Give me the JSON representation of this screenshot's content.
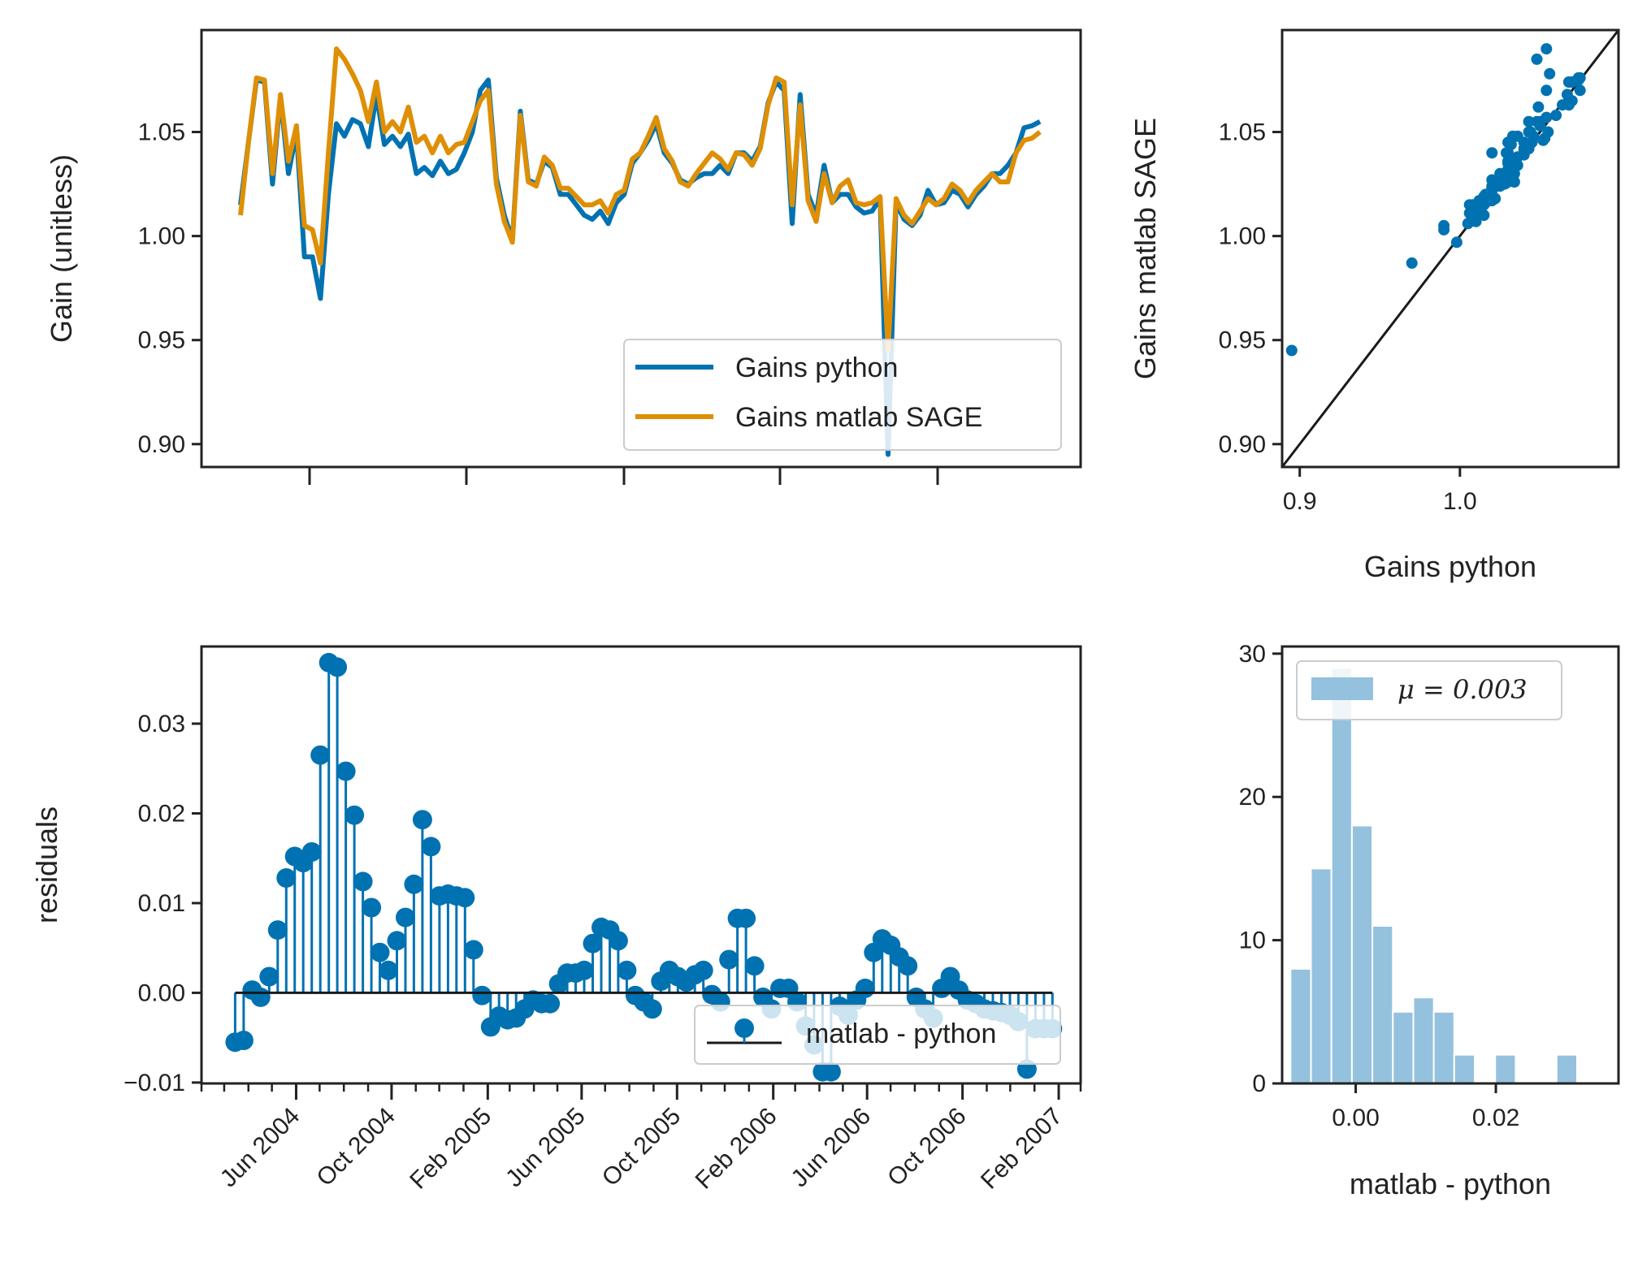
{
  "colors": {
    "python": "#0072b2",
    "matlab": "#de8f05",
    "identity": "#1a1a1a",
    "baseline": "#1a1a1a",
    "hist": "#94c1de",
    "axes": "#222222"
  },
  "chart_data": [
    {
      "id": "gains_timeseries",
      "type": "line",
      "title": "",
      "xlabel": "",
      "ylabel": "Gain (unitless)",
      "ylim": [
        0.889,
        1.099
      ],
      "yticks": [
        0.9,
        0.95,
        1.0,
        1.05
      ],
      "ytick_labels": [
        "0.90",
        "0.95",
        "1.00",
        "1.05"
      ],
      "x_index_range": [
        0,
        100
      ],
      "legend_position": "lower-right",
      "series": [
        {
          "name": "Gains python",
          "color": "#0072b2",
          "values": [
            1.015,
            1.045,
            1.075,
            1.074,
            1.025,
            1.067,
            1.03,
            1.05,
            0.99,
            0.99,
            0.97,
            1.02,
            1.054,
            1.048,
            1.056,
            1.054,
            1.043,
            1.068,
            1.044,
            1.048,
            1.043,
            1.049,
            1.03,
            1.033,
            1.029,
            1.036,
            1.03,
            1.032,
            1.04,
            1.05,
            1.07,
            1.075,
            1.028,
            1.01,
            0.998,
            1.06,
            1.027,
            1.025,
            1.036,
            1.033,
            1.02,
            1.02,
            1.015,
            1.01,
            1.008,
            1.012,
            1.006,
            1.016,
            1.02,
            1.035,
            1.04,
            1.046,
            1.054,
            1.04,
            1.035,
            1.027,
            1.025,
            1.028,
            1.03,
            1.03,
            1.034,
            1.03,
            1.04,
            1.04,
            1.036,
            1.043,
            1.064,
            1.074,
            1.07,
            1.006,
            1.068,
            1.02,
            1.01,
            1.034,
            1.016,
            1.02,
            1.02,
            1.014,
            1.011,
            1.012,
            1.018,
            0.895,
            1.016,
            1.008,
            1.005,
            1.01,
            1.022,
            1.015,
            1.016,
            1.022,
            1.02,
            1.014,
            1.02,
            1.024,
            1.03,
            1.03,
            1.034,
            1.04,
            1.052,
            1.053,
            1.055
          ],
          "ylabel_shown": ""
        },
        {
          "name": "Gains matlab SAGE",
          "color": "#de8f05",
          "values": [
            1.01,
            1.045,
            1.076,
            1.075,
            1.03,
            1.068,
            1.036,
            1.053,
            1.005,
            1.003,
            0.987,
            1.04,
            1.09,
            1.085,
            1.078,
            1.07,
            1.055,
            1.074,
            1.05,
            1.055,
            1.05,
            1.062,
            1.045,
            1.048,
            1.04,
            1.048,
            1.04,
            1.044,
            1.045,
            1.055,
            1.065,
            1.07,
            1.025,
            1.007,
            0.997,
            1.058,
            1.026,
            1.024,
            1.038,
            1.034,
            1.023,
            1.023,
            1.019,
            1.015,
            1.015,
            1.017,
            1.011,
            1.02,
            1.022,
            1.037,
            1.04,
            1.048,
            1.057,
            1.042,
            1.036,
            1.026,
            1.024,
            1.03,
            1.035,
            1.04,
            1.037,
            1.032,
            1.04,
            1.039,
            1.034,
            1.042,
            1.063,
            1.076,
            1.074,
            1.015,
            1.063,
            1.017,
            1.007,
            1.03,
            1.016,
            1.024,
            1.027,
            1.016,
            1.015,
            1.016,
            1.019,
            0.945,
            1.018,
            1.01,
            1.006,
            1.012,
            1.018,
            1.015,
            1.018,
            1.025,
            1.022,
            1.016,
            1.022,
            1.026,
            1.03,
            1.026,
            1.026,
            1.04,
            1.046,
            1.047,
            1.05
          ]
        }
      ]
    },
    {
      "id": "gains_scatter",
      "type": "scatter",
      "title": "",
      "xlabel": "Gains python",
      "ylabel": "Gains matlab SAGE",
      "xlim": [
        0.889,
        1.099
      ],
      "ylim": [
        0.889,
        1.099
      ],
      "xticks": [
        0.9,
        1.0
      ],
      "xtick_labels": [
        "0.9",
        "1.0"
      ],
      "yticks": [
        0.9,
        0.95,
        1.0,
        1.05
      ],
      "ytick_labels": [
        "0.90",
        "0.95",
        "1.00",
        "1.05"
      ],
      "identity_line": true,
      "note": "points are (Gains python, Gains matlab SAGE) pairs from the time series"
    },
    {
      "id": "residuals_stem",
      "type": "stem",
      "title": "",
      "xlabel": "",
      "ylabel": "residuals",
      "ylim": [
        -0.0101,
        0.0386
      ],
      "yticks": [
        -0.01,
        0.0,
        0.01,
        0.02,
        0.03
      ],
      "ytick_labels": [
        "−0.01",
        "0.00",
        "0.01",
        "0.02",
        "0.03"
      ],
      "x_start": "2004-03-15",
      "x_end": "2007-01-24",
      "x_range": [
        "2004-02-01",
        "2007-03-01"
      ],
      "xtick_dates": [
        "2004-06-01",
        "2004-10-01",
        "2005-02-01",
        "2005-06-01",
        "2005-10-01",
        "2006-02-01",
        "2006-06-01",
        "2006-10-01",
        "2007-02-01"
      ],
      "xtick_labels": [
        "Jun 2004",
        "Oct 2004",
        "Feb 2005",
        "Jun 2005",
        "Oct 2005",
        "Feb 2006",
        "Jun 2006",
        "Oct 2006",
        "Feb 2007"
      ],
      "legend": "matlab - python",
      "legend_position": "lower-right",
      "color": "#0072b2",
      "values": [
        -0.0055,
        -0.0053,
        0.0003,
        -0.0005,
        0.0018,
        0.007,
        0.0128,
        0.0152,
        0.0145,
        0.0157,
        0.0265,
        0.0368,
        0.0363,
        0.0247,
        0.0198,
        0.0124,
        0.0095,
        0.0045,
        0.0025,
        0.0058,
        0.0084,
        0.0121,
        0.0193,
        0.0163,
        0.0108,
        0.011,
        0.0108,
        0.0106,
        0.0048,
        -0.0003,
        -0.0038,
        -0.0026,
        -0.003,
        -0.0028,
        -0.0018,
        -0.0008,
        -0.0012,
        -0.0012,
        0.001,
        0.0022,
        0.0022,
        0.0025,
        0.0055,
        0.0073,
        0.007,
        0.0058,
        0.0025,
        -0.0003,
        -0.001,
        -0.0018,
        0.0013,
        0.0025,
        0.0018,
        0.0012,
        0.002,
        0.0025,
        -0.0002,
        -0.001,
        0.0037,
        0.0083,
        0.0083,
        0.003,
        -0.0005,
        -0.0018,
        0.0005,
        0.0005,
        -0.001,
        -0.0037,
        -0.0058,
        -0.0088,
        -0.0088,
        -0.0015,
        -0.0025,
        -0.0008,
        0.0005,
        0.0045,
        0.006,
        0.0053,
        0.004,
        0.003,
        -0.0005,
        -0.0018,
        -0.0028,
        0.0005,
        0.0018,
        0.0003,
        -0.0008,
        -0.0012,
        -0.0018,
        -0.002,
        -0.0022,
        -0.0025,
        -0.0032,
        -0.0085,
        -0.004,
        -0.004,
        -0.004
      ]
    },
    {
      "id": "residuals_hist",
      "type": "histogram",
      "title": "",
      "xlabel": "matlab - python",
      "ylabel": "",
      "xlim": [
        -0.0105,
        0.0375
      ],
      "ylim": [
        0,
        30.5
      ],
      "xticks": [
        0.0,
        0.02
      ],
      "xtick_labels": [
        "0.00",
        "0.02"
      ],
      "yticks": [
        0,
        10,
        20,
        30
      ],
      "ytick_labels": [
        "0",
        "10",
        "20",
        "30"
      ],
      "legend": "μ = 0.003",
      "legend_position": "upper-left",
      "color": "#94c1de",
      "bin_start": -0.0093,
      "bin_width": 0.00292,
      "counts": [
        8,
        15,
        29,
        18,
        11,
        5,
        6,
        5,
        2,
        0,
        2,
        0,
        0,
        2
      ]
    }
  ]
}
